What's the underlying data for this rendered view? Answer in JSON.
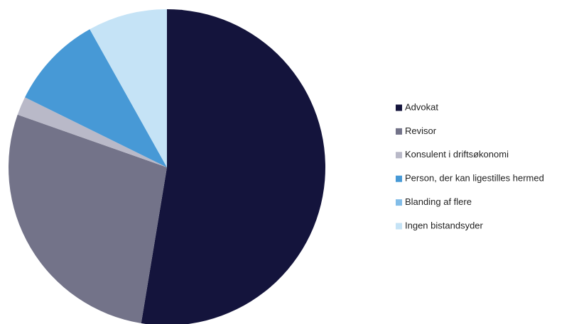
{
  "chart_data": {
    "type": "pie",
    "categories": [
      "Advokat",
      "Revisor",
      "Konsulent i driftsøkonomi",
      "Person, der kan ligestilles hermed",
      "Blanding af flere",
      "Ingen bistandsyder"
    ],
    "values": [
      52.6,
      27.8,
      1.9,
      9.6,
      0,
      8.1
    ],
    "colors": [
      "#14143c",
      "#737389",
      "#b9b9c8",
      "#4799d6",
      "#82bde8",
      "#c5e3f6"
    ],
    "legend": "right"
  }
}
